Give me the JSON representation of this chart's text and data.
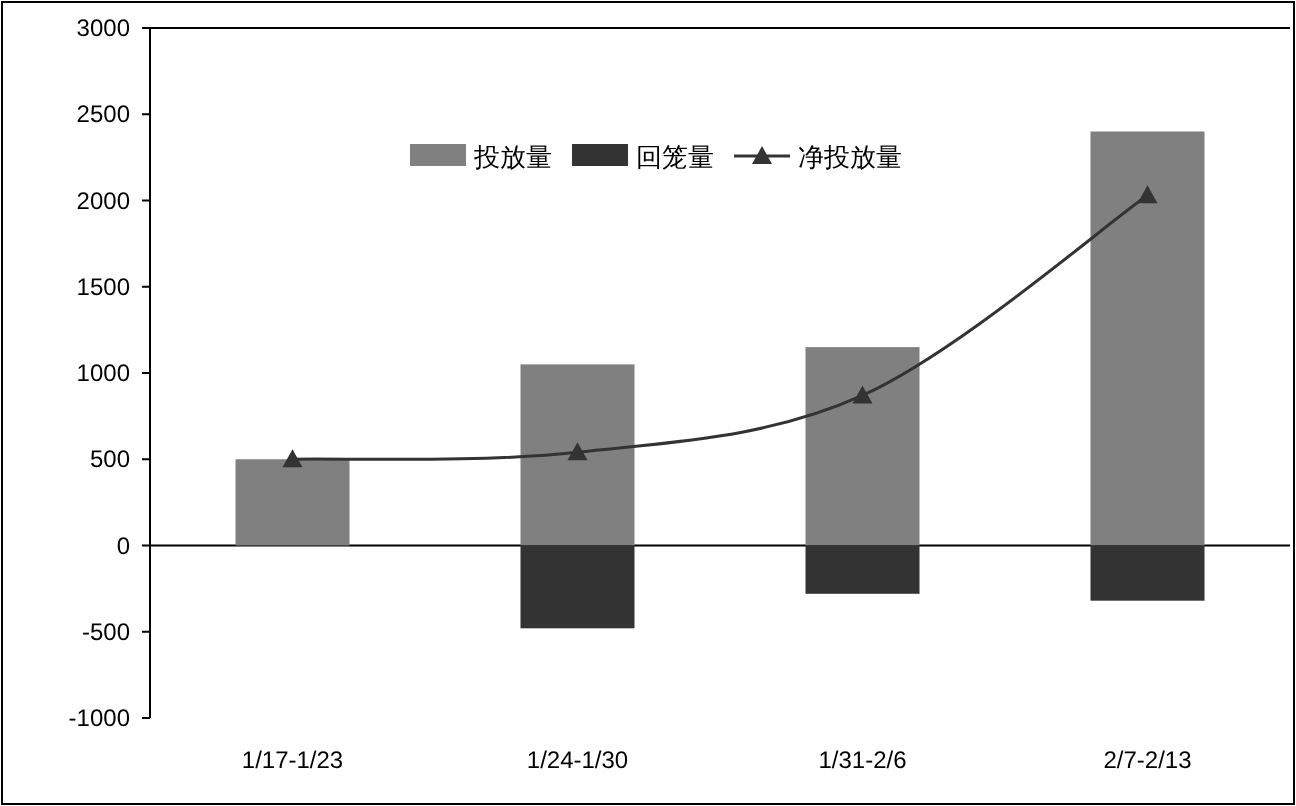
{
  "chart_data": {
    "type": "bar",
    "categories": [
      "1/17-1/23",
      "1/24-1/30",
      "1/31-2/6",
      "2/7-2/13"
    ],
    "series": [
      {
        "name": "投放量",
        "color": "#808080",
        "values": [
          500,
          1050,
          1150,
          2400
        ]
      },
      {
        "name": "回笼量",
        "color": "#333333",
        "values": [
          null,
          -480,
          -280,
          -320
        ]
      },
      {
        "name": "净投放量",
        "type": "line",
        "color": "#333333",
        "marker": "triangle",
        "values": [
          500,
          540,
          870,
          2030
        ]
      }
    ],
    "ylim": [
      -1000,
      3000
    ],
    "yticks": [
      -1000,
      -500,
      0,
      500,
      1000,
      1500,
      2000,
      2500,
      3000
    ],
    "legend": "top",
    "stacked": true
  }
}
